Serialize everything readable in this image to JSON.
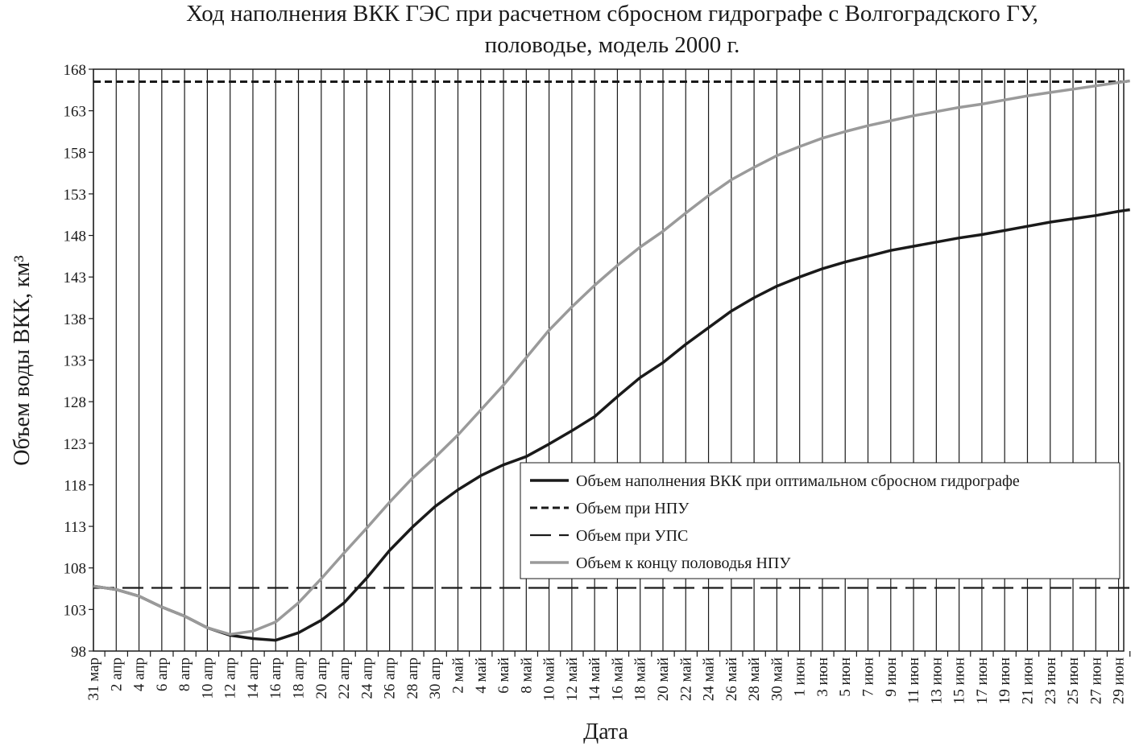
{
  "chart_data": {
    "type": "line",
    "title": [
      "Ход наполнения ВКК ГЭС при расчетном сбросном гидрографе с Волгоградского ГУ,",
      "половодье, модель 2000 г."
    ],
    "xlabel": "Дата",
    "ylabel": "Объем воды ВКК, км³",
    "ylim": [
      98,
      168
    ],
    "yticks": [
      98,
      103,
      108,
      113,
      118,
      123,
      128,
      133,
      138,
      143,
      148,
      153,
      158,
      163,
      168
    ],
    "xticks": [
      "31 мар",
      "2 апр",
      "4 апр",
      "6 апр",
      "8 апр",
      "10 апр",
      "12 апр",
      "14 апр",
      "16 апр",
      "18 апр",
      "20 апр",
      "22 апр",
      "24 апр",
      "26 апр",
      "28 апр",
      "30 апр",
      "2 май",
      "4 май",
      "6 май",
      "8 май",
      "10 май",
      "12 май",
      "14 май",
      "16 май",
      "18 май",
      "20 май",
      "22 май",
      "24 май",
      "26 май",
      "28 май",
      "30 май",
      "1 июн",
      "3 июн",
      "5 июн",
      "7 июн",
      "9 июн",
      "11 июн",
      "13 июн",
      "15 июн",
      "17 июн",
      "19 июн",
      "21 июн",
      "23 июн",
      "25 июн",
      "27 июн",
      "29 июн"
    ],
    "x_range": [
      "31 мар",
      "30 июн"
    ],
    "grid": "vertical",
    "legend_position": "right-middle",
    "series": [
      {
        "name": "Объем наполнения ВКК при оптимальном сбросном гидрографе",
        "style": "solid-black",
        "color": "#1a1a1a",
        "points": [
          [
            "31 мар",
            105.8
          ],
          [
            "2 апр",
            105.4
          ],
          [
            "4 апр",
            104.6
          ],
          [
            "6 апр",
            103.3
          ],
          [
            "8 апр",
            102.2
          ],
          [
            "10 апр",
            100.8
          ],
          [
            "12 апр",
            99.9
          ],
          [
            "14 апр",
            99.5
          ],
          [
            "16 апр",
            99.3
          ],
          [
            "18 апр",
            100.2
          ],
          [
            "20 апр",
            101.7
          ],
          [
            "22 апр",
            103.8
          ],
          [
            "24 апр",
            106.8
          ],
          [
            "26 апр",
            110.1
          ],
          [
            "28 апр",
            112.9
          ],
          [
            "30 апр",
            115.4
          ],
          [
            "2 май",
            117.4
          ],
          [
            "4 май",
            119.1
          ],
          [
            "6 май",
            120.4
          ],
          [
            "8 май",
            121.4
          ],
          [
            "10 май",
            122.9
          ],
          [
            "12 май",
            124.5
          ],
          [
            "14 май",
            126.2
          ],
          [
            "16 май",
            128.6
          ],
          [
            "18 май",
            130.9
          ],
          [
            "20 май",
            132.7
          ],
          [
            "22 май",
            134.9
          ],
          [
            "24 май",
            136.9
          ],
          [
            "26 май",
            138.9
          ],
          [
            "28 май",
            140.5
          ],
          [
            "30 май",
            141.9
          ],
          [
            "1 июн",
            143.0
          ],
          [
            "3 июн",
            144.0
          ],
          [
            "5 июн",
            144.8
          ],
          [
            "7 июн",
            145.5
          ],
          [
            "9 июн",
            146.2
          ],
          [
            "11 июн",
            146.7
          ],
          [
            "13 июн",
            147.2
          ],
          [
            "15 июн",
            147.7
          ],
          [
            "17 июн",
            148.1
          ],
          [
            "19 июн",
            148.6
          ],
          [
            "21 июн",
            149.1
          ],
          [
            "23 июн",
            149.6
          ],
          [
            "25 июн",
            150.0
          ],
          [
            "27 июн",
            150.4
          ],
          [
            "29 июн",
            150.9
          ],
          [
            "30 июн",
            151.1
          ]
        ]
      },
      {
        "name": "Объем при НПУ",
        "style": "short-dash-black",
        "color": "#1a1a1a",
        "points": [
          [
            "31 мар",
            166.5
          ],
          [
            "30 июн",
            166.5
          ]
        ]
      },
      {
        "name": "Объем при УПС",
        "style": "long-dash-black",
        "color": "#1a1a1a",
        "points": [
          [
            "31 мар",
            105.6
          ],
          [
            "30 июн",
            105.6
          ]
        ]
      },
      {
        "name": "Объем к концу половодья НПУ",
        "style": "solid-gray",
        "color": "#9a9a9a",
        "points": [
          [
            "31 мар",
            105.8
          ],
          [
            "2 апр",
            105.4
          ],
          [
            "4 апр",
            104.6
          ],
          [
            "6 апр",
            103.3
          ],
          [
            "8 апр",
            102.2
          ],
          [
            "10 апр",
            100.8
          ],
          [
            "12 апр",
            100.0
          ],
          [
            "14 апр",
            100.4
          ],
          [
            "16 апр",
            101.5
          ],
          [
            "18 апр",
            103.8
          ],
          [
            "20 апр",
            106.7
          ],
          [
            "22 апр",
            109.8
          ],
          [
            "24 апр",
            112.8
          ],
          [
            "26 апр",
            115.9
          ],
          [
            "28 апр",
            118.8
          ],
          [
            "30 апр",
            121.3
          ],
          [
            "2 май",
            124.0
          ],
          [
            "4 май",
            127.0
          ],
          [
            "6 май",
            130.0
          ],
          [
            "8 май",
            133.3
          ],
          [
            "10 май",
            136.6
          ],
          [
            "12 май",
            139.4
          ],
          [
            "14 май",
            142.0
          ],
          [
            "16 май",
            144.4
          ],
          [
            "18 май",
            146.6
          ],
          [
            "20 май",
            148.5
          ],
          [
            "22 май",
            150.7
          ],
          [
            "24 май",
            152.8
          ],
          [
            "26 май",
            154.7
          ],
          [
            "28 май",
            156.2
          ],
          [
            "30 май",
            157.6
          ],
          [
            "1 июн",
            158.7
          ],
          [
            "3 июн",
            159.7
          ],
          [
            "5 июн",
            160.5
          ],
          [
            "7 июн",
            161.2
          ],
          [
            "9 июн",
            161.8
          ],
          [
            "11 июн",
            162.4
          ],
          [
            "13 июн",
            162.9
          ],
          [
            "15 июн",
            163.4
          ],
          [
            "17 июн",
            163.8
          ],
          [
            "19 июн",
            164.3
          ],
          [
            "21 июн",
            164.8
          ],
          [
            "23 июн",
            165.2
          ],
          [
            "25 июн",
            165.6
          ],
          [
            "27 июн",
            166.0
          ],
          [
            "29 июн",
            166.4
          ],
          [
            "30 июн",
            166.6
          ]
        ]
      }
    ]
  }
}
